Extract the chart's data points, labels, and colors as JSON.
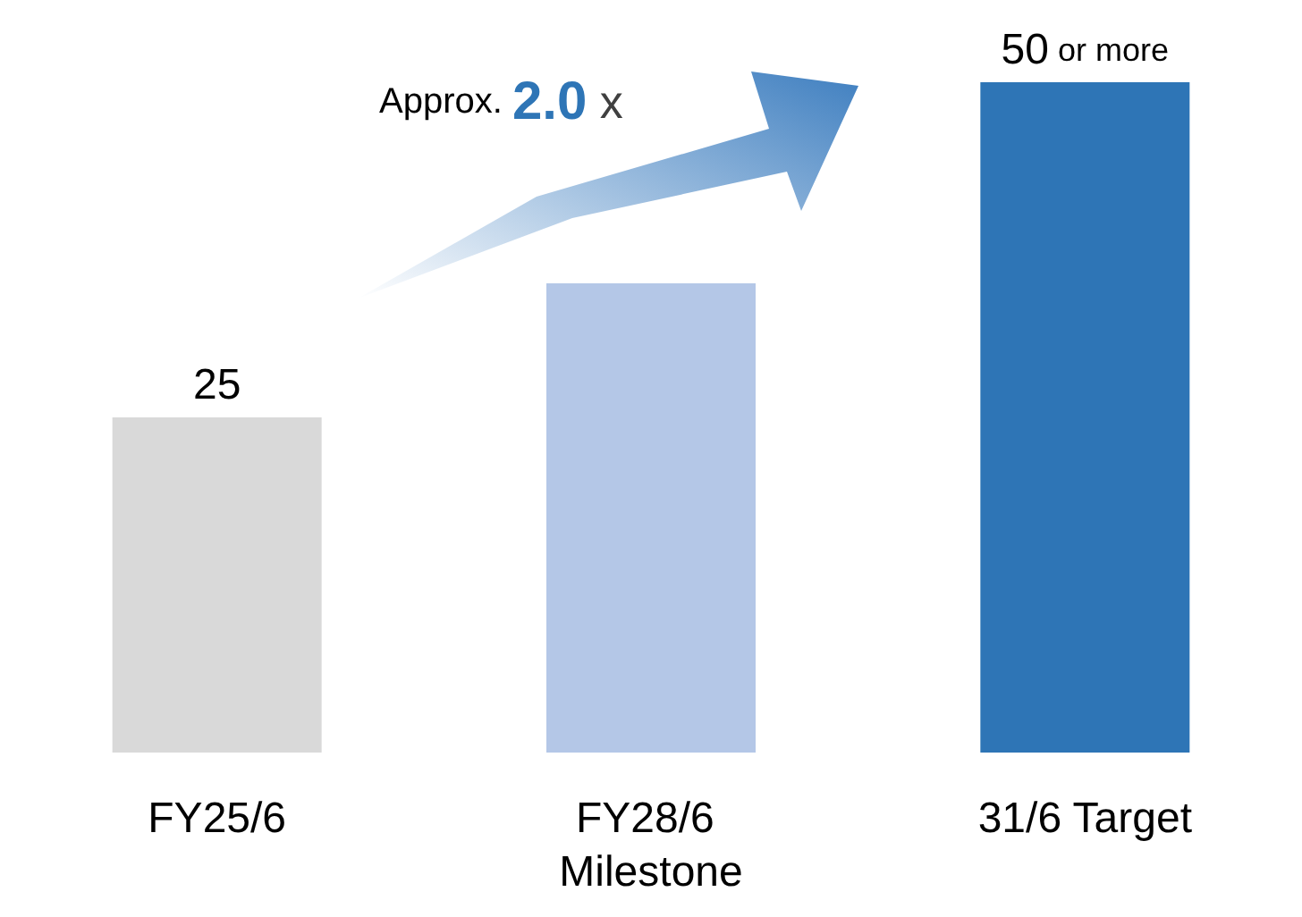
{
  "chart_data": {
    "type": "bar",
    "categories": [
      "FY25/6",
      "FY28/6 Milestone",
      "31/6 Target"
    ],
    "values": [
      25,
      35,
      50
    ],
    "colors": [
      "#d9d9d9",
      "#b4c7e7",
      "#2e75b6"
    ],
    "value_labels": [
      "25",
      null,
      "50 or more"
    ],
    "annotations": [
      "Approx. 2.0 x"
    ]
  }
}
